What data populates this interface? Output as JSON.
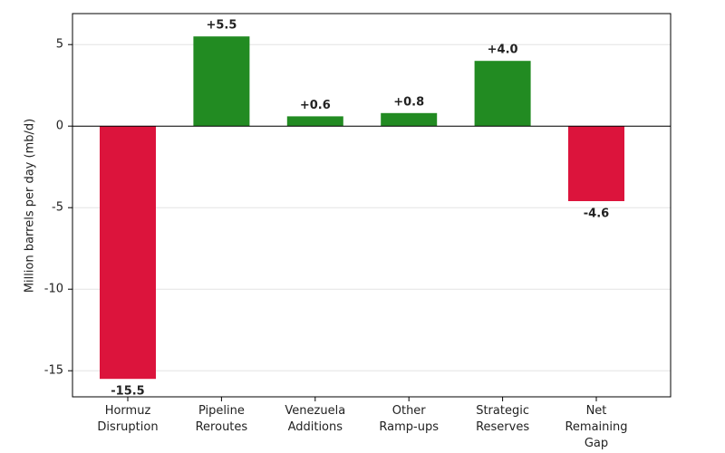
{
  "chart_data": {
    "type": "bar",
    "y_label": "Million barrels per day (mb/d)",
    "categories": [
      "Hormuz Disruption",
      "Pipeline Reroutes",
      "Venezuela Additions",
      "Other Ramp-ups",
      "Strategic Reserves",
      "Net Remaining Gap"
    ],
    "values": [
      -15.5,
      5.5,
      0.6,
      0.8,
      4.0,
      -4.6
    ],
    "value_labels": [
      "-15.5",
      "+5.5",
      "+0.6",
      "+0.8",
      "+4.0",
      "-4.6"
    ],
    "colors": [
      "#dc143c",
      "#228b22",
      "#228b22",
      "#228b22",
      "#228b22",
      "#dc143c"
    ],
    "ylim": [
      -16.6,
      6.9
    ],
    "yticks": [
      -15,
      -10,
      -5,
      0,
      5
    ],
    "grid": true
  }
}
